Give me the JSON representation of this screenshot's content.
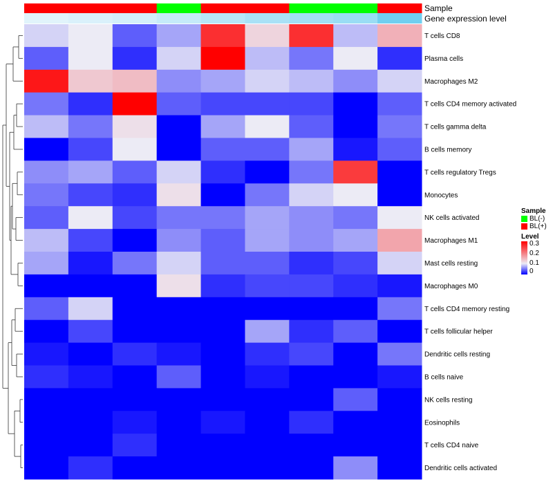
{
  "chart_data": {
    "type": "heatmap",
    "annotation_labels": [
      "Sample",
      "Gene expression level"
    ],
    "columns": [
      "",
      "",
      "",
      "",
      "",
      "",
      "",
      "",
      ""
    ],
    "sample_groups": [
      "BL(+)",
      "BL(+)",
      "BL(+)",
      "BL(-)",
      "BL(+)",
      "BL(+)",
      "BL(-)",
      "BL(-)",
      "BL(+)"
    ],
    "gene_expression_level": [
      0.05,
      0.1,
      0.15,
      0.25,
      0.35,
      0.45,
      0.5,
      0.55,
      0.85
    ],
    "rows": [
      "T cells CD8",
      "Plasma cells",
      "Macrophages M2",
      "T cells CD4 memory activated",
      "T cells gamma delta",
      "B cells memory",
      "T cells regulatory  Tregs",
      "Monocytes",
      "NK cells activated",
      "Macrophages M1",
      "Mast cells resting",
      "Macrophages M0",
      "T cells CD4 memory resting",
      "T cells follicular helper",
      "Dendritic cells resting",
      "B cells naive",
      "NK cells resting",
      "Eosinophils",
      "T cells CD4 naive",
      "Dendritic cells activated"
    ],
    "values": [
      [
        0.09,
        0.1,
        0.04,
        0.07,
        0.26,
        0.12,
        0.26,
        0.08,
        0.15
      ],
      [
        0.04,
        0.1,
        0.02,
        0.09,
        0.3,
        0.08,
        0.05,
        0.1,
        0.02
      ],
      [
        0.28,
        0.13,
        0.14,
        0.06,
        0.07,
        0.09,
        0.08,
        0.06,
        0.09
      ],
      [
        0.05,
        0.02,
        0.3,
        0.04,
        0.03,
        0.03,
        0.03,
        0.0,
        0.04
      ],
      [
        0.08,
        0.05,
        0.11,
        0.0,
        0.07,
        0.1,
        0.04,
        0.0,
        0.05
      ],
      [
        0.0,
        0.03,
        0.1,
        0.0,
        0.04,
        0.04,
        0.07,
        0.01,
        0.04
      ],
      [
        0.06,
        0.07,
        0.04,
        0.09,
        0.02,
        0.0,
        0.05,
        0.25,
        0.0
      ],
      [
        0.05,
        0.03,
        0.02,
        0.11,
        0.0,
        0.05,
        0.09,
        0.1,
        0.0
      ],
      [
        0.04,
        0.1,
        0.03,
        0.05,
        0.05,
        0.07,
        0.06,
        0.05,
        0.1
      ],
      [
        0.08,
        0.03,
        0.0,
        0.06,
        0.04,
        0.07,
        0.06,
        0.07,
        0.16
      ],
      [
        0.07,
        0.01,
        0.05,
        0.09,
        0.04,
        0.04,
        0.02,
        0.03,
        0.09
      ],
      [
        0.0,
        0.0,
        0.0,
        0.11,
        0.02,
        0.03,
        0.03,
        0.02,
        0.01
      ],
      [
        0.04,
        0.09,
        0.0,
        0.0,
        0.0,
        0.0,
        0.0,
        0.0,
        0.05
      ],
      [
        0.0,
        0.03,
        0.0,
        0.0,
        0.0,
        0.07,
        0.02,
        0.04,
        0.0
      ],
      [
        0.01,
        0.0,
        0.02,
        0.01,
        0.0,
        0.02,
        0.03,
        0.0,
        0.05
      ],
      [
        0.02,
        0.01,
        0.0,
        0.04,
        0.0,
        0.01,
        0.0,
        0.0,
        0.01
      ],
      [
        0.0,
        0.0,
        0.0,
        0.0,
        0.0,
        0.0,
        0.0,
        0.04,
        0.0
      ],
      [
        0.0,
        0.0,
        0.01,
        0.0,
        0.01,
        0.0,
        0.02,
        0.0,
        0.0
      ],
      [
        0.0,
        0.0,
        0.02,
        0.0,
        0.0,
        0.0,
        0.0,
        0.0,
        0.0
      ],
      [
        0.0,
        0.02,
        0.0,
        0.0,
        0.0,
        0.0,
        0.0,
        0.06,
        0.0
      ]
    ],
    "color_scale": {
      "low": "#0000ff",
      "mid": "#ecebf5",
      "high": "#ff0000",
      "min": 0,
      "mid_value": 0.1,
      "max": 0.3
    },
    "legend": {
      "sample_title": "Sample",
      "sample_entries": [
        {
          "label": "BL(-)",
          "color": "#00ff00"
        },
        {
          "label": "BL(+)",
          "color": "#ff0000"
        }
      ],
      "level_title": "Level",
      "level_ticks": [
        "0.3",
        "0.2",
        "0.1",
        "0"
      ],
      "placement": "right"
    },
    "dendrogram": "rows",
    "annotation_colors": {
      "BL(-)": "#00ff00",
      "BL(+)": "#ff0000",
      "expression_light": "#e8f6fc",
      "expression_dark": "#5bc8ee"
    }
  }
}
